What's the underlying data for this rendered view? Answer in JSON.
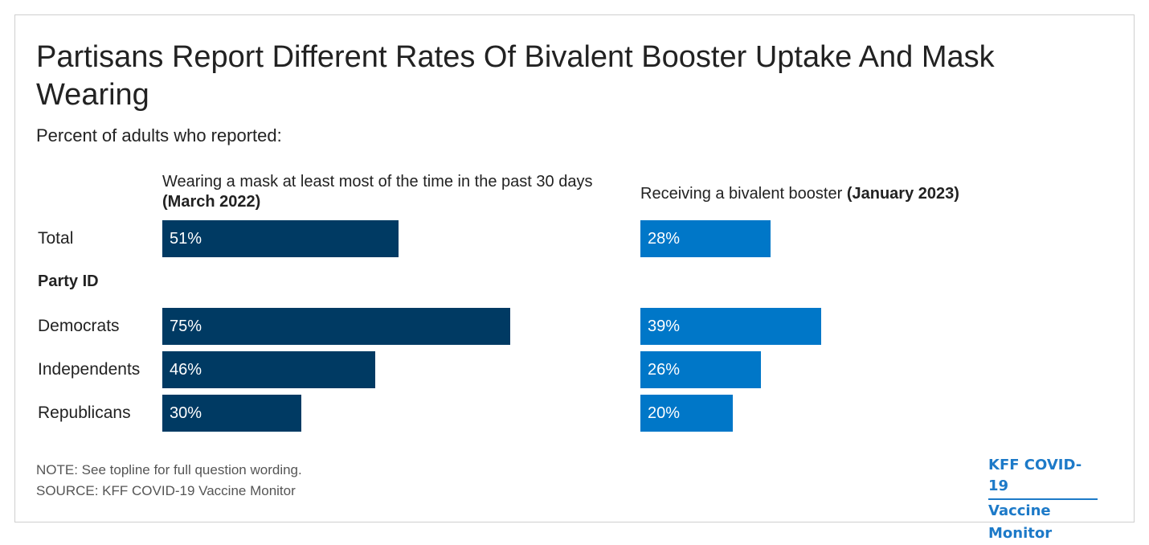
{
  "title": "Partisans Report Different Rates Of Bivalent Booster Uptake And Mask Wearing",
  "subtitle": "Percent of adults who reported:",
  "section_label": "Party ID",
  "note": "NOTE: See topline for full question wording.",
  "source": "SOURCE: KFF COVID-19 Vaccine Monitor",
  "logo": {
    "line1": "KFF COVID-19",
    "line2": "Vaccine Monitor"
  },
  "colors": {
    "mask": "#003a63",
    "booster": "#0077c8",
    "logo": "#1d7ac8"
  },
  "chart_data": {
    "type": "bar",
    "orientation": "horizontal",
    "categories": [
      "Total",
      "Democrats",
      "Independents",
      "Republicans"
    ],
    "series": [
      {
        "name": "Wearing a mask at least most of the time in the past 30 days",
        "name_bold": "(March 2022)",
        "values": [
          51,
          75,
          46,
          30
        ],
        "labels": [
          "51%",
          "75%",
          "46%",
          "30%"
        ]
      },
      {
        "name": "Receiving a bivalent booster",
        "name_bold": "(January 2023)",
        "values": [
          28,
          39,
          26,
          20
        ],
        "labels": [
          "28%",
          "39%",
          "26%",
          "20%"
        ]
      }
    ]
  }
}
